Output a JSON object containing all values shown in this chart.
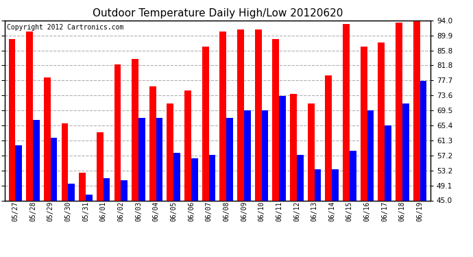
{
  "title": "Outdoor Temperature Daily High/Low 20120620",
  "copyright": "Copyright 2012 Cartronics.com",
  "dates": [
    "05/27",
    "05/28",
    "05/29",
    "05/30",
    "05/31",
    "06/01",
    "06/02",
    "06/03",
    "06/04",
    "06/05",
    "06/06",
    "06/07",
    "06/08",
    "06/09",
    "06/10",
    "06/11",
    "06/12",
    "06/13",
    "06/14",
    "06/15",
    "06/16",
    "06/17",
    "06/18",
    "06/19"
  ],
  "highs": [
    89.0,
    91.0,
    78.5,
    66.0,
    52.5,
    63.5,
    82.0,
    83.5,
    76.0,
    71.5,
    75.0,
    87.0,
    91.0,
    91.5,
    91.5,
    89.0,
    74.0,
    71.5,
    79.0,
    93.0,
    87.0,
    88.0,
    93.5,
    94.0
  ],
  "lows": [
    60.0,
    67.0,
    62.0,
    49.5,
    46.5,
    51.0,
    50.5,
    67.5,
    67.5,
    58.0,
    56.5,
    57.5,
    67.5,
    69.5,
    69.5,
    73.5,
    57.5,
    53.5,
    53.5,
    58.5,
    69.5,
    65.5,
    71.5,
    77.5
  ],
  "high_color": "#ff0000",
  "low_color": "#0000ff",
  "bg_color": "#ffffff",
  "plot_bg_color": "#ffffff",
  "grid_color": "#b0b0b0",
  "title_fontsize": 11,
  "copyright_fontsize": 7,
  "yticks": [
    45.0,
    49.1,
    53.2,
    57.2,
    61.3,
    65.4,
    69.5,
    73.6,
    77.7,
    81.8,
    85.8,
    89.9,
    94.0
  ],
  "ylim": [
    45.0,
    94.0
  ],
  "ymin": 45.0,
  "bar_width": 0.38
}
